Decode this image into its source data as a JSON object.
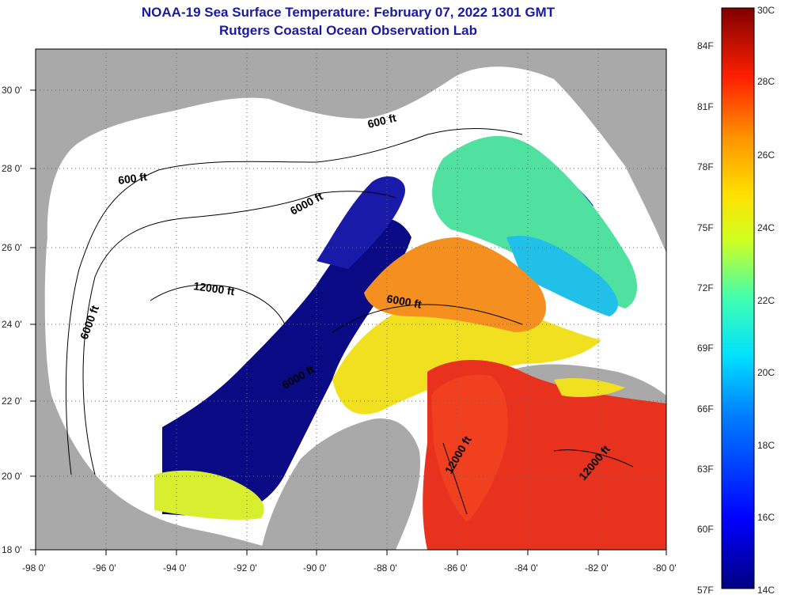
{
  "header": {
    "title": "NOAA-19 Sea Surface Temperature:  February 07, 2022 1301 GMT",
    "subtitle": "Rutgers Coastal Ocean Observation Lab"
  },
  "axes": {
    "latitude_ticks": [
      "30 0'",
      "28 0'",
      "26 0'",
      "24 0'",
      "22 0'",
      "20 0'",
      "18 0'"
    ],
    "longitude_ticks": [
      "-98 0'",
      "-96 0'",
      "-94 0'",
      "-92 0'",
      "-90 0'",
      "-88 0'",
      "-86 0'",
      "-84 0'",
      "-82 0'",
      "-80 0'"
    ],
    "lat_range": [
      18,
      31
    ],
    "lon_range": [
      -98,
      -80
    ]
  },
  "contour_labels": {
    "c600_east": "600 ft",
    "c600_west": "600 ft",
    "c6000_north": "6000 ft",
    "c6000_west": "6000 ft",
    "c6000_east": "6000 ft",
    "c6000_south": "6000 ft",
    "c12000_center": "12000 ft",
    "c12000_south": "12000 ft",
    "c12000_east": "12000 ft"
  },
  "colorbar": {
    "celsius_labels": [
      "30C",
      "28C",
      "26C",
      "24C",
      "22C",
      "20C",
      "18C",
      "16C",
      "14C"
    ],
    "fahrenheit_labels": [
      "84F",
      "81F",
      "78F",
      "75F",
      "72F",
      "69F",
      "66F",
      "63F",
      "60F",
      "57F"
    ],
    "range_c": [
      14,
      30
    ]
  },
  "colors": {
    "land": "#a9a9a9",
    "cloud": "#ffffff",
    "cold": "#0a0a85",
    "warm": "#e8321e",
    "title": "#1a1aa0"
  }
}
